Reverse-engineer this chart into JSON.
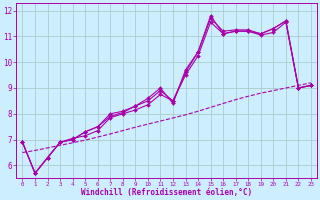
{
  "xlabel": "Windchill (Refroidissement éolien,°C)",
  "bg_color": "#cceeff",
  "line_color": "#aa00aa",
  "grid_color": "#aacccc",
  "x_values": [
    0,
    1,
    2,
    3,
    4,
    5,
    6,
    7,
    8,
    9,
    10,
    11,
    12,
    13,
    14,
    15,
    16,
    17,
    18,
    19,
    20,
    21,
    22,
    23
  ],
  "line1_y": [
    6.9,
    5.7,
    6.3,
    6.9,
    7.0,
    7.3,
    7.5,
    8.0,
    8.1,
    8.3,
    8.6,
    9.0,
    8.4,
    9.7,
    10.4,
    11.8,
    11.1,
    11.2,
    11.2,
    11.1,
    11.3,
    11.6,
    9.0,
    9.1
  ],
  "line2_y": [
    6.9,
    5.7,
    6.3,
    6.9,
    7.0,
    7.3,
    7.5,
    7.9,
    8.05,
    8.3,
    8.5,
    8.9,
    8.5,
    9.6,
    10.4,
    11.7,
    11.2,
    11.25,
    11.25,
    11.1,
    11.3,
    11.6,
    9.0,
    9.1
  ],
  "line3_y": [
    6.9,
    5.7,
    6.3,
    6.9,
    7.05,
    7.15,
    7.35,
    7.85,
    8.0,
    8.15,
    8.35,
    8.75,
    8.5,
    9.5,
    10.25,
    11.55,
    11.1,
    11.2,
    11.2,
    11.05,
    11.15,
    11.55,
    9.0,
    9.1
  ],
  "line_trend_y": [
    6.5,
    6.58,
    6.68,
    6.78,
    6.88,
    6.98,
    7.1,
    7.22,
    7.35,
    7.48,
    7.6,
    7.72,
    7.84,
    7.96,
    8.1,
    8.25,
    8.4,
    8.55,
    8.68,
    8.8,
    8.9,
    9.0,
    9.1,
    9.2
  ],
  "ylim": [
    5.5,
    12.3
  ],
  "yticks": [
    6,
    7,
    8,
    9,
    10,
    11,
    12
  ],
  "xticks": [
    0,
    1,
    2,
    3,
    4,
    5,
    6,
    7,
    8,
    9,
    10,
    11,
    12,
    13,
    14,
    15,
    16,
    17,
    18,
    19,
    20,
    21,
    22,
    23
  ]
}
